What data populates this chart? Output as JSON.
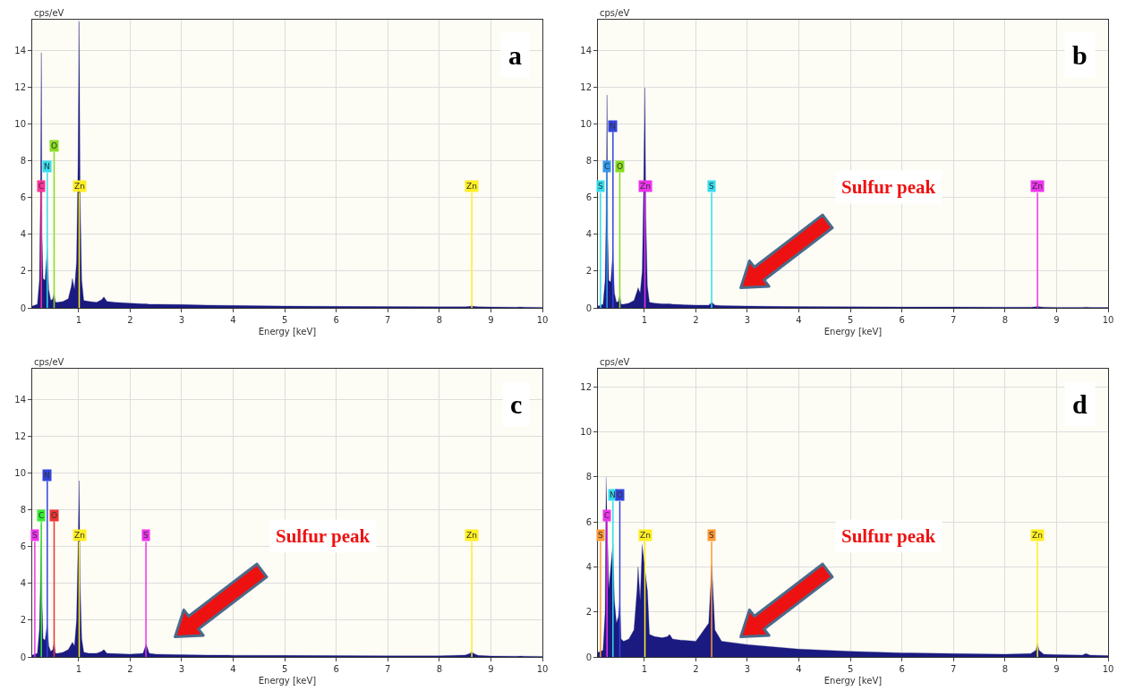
{
  "chart_data": [
    {
      "type": "area",
      "title": "a",
      "xlabel": "Energy [keV]",
      "ylabel": "cps/eV",
      "color": "#1a1a80",
      "grid": true,
      "xlim": [
        0.1,
        10
      ],
      "ylim": [
        0,
        15.7
      ],
      "xticks": [
        1,
        2,
        3,
        4,
        5,
        6,
        7,
        8,
        9,
        10
      ],
      "yticks": [
        0,
        2,
        4,
        6,
        8,
        10,
        12,
        14
      ],
      "x": [
        0.1,
        0.2,
        0.24,
        0.26,
        0.277,
        0.29,
        0.31,
        0.35,
        0.39,
        0.42,
        0.46,
        0.5,
        0.525,
        0.55,
        0.6,
        0.7,
        0.8,
        0.86,
        0.88,
        0.92,
        0.96,
        0.99,
        1.012,
        1.03,
        1.06,
        1.1,
        1.2,
        1.35,
        1.45,
        1.49,
        1.55,
        1.7,
        2,
        2.25,
        2.31,
        2.37,
        2.5,
        3,
        3.5,
        4,
        5,
        6,
        7,
        8,
        8.5,
        8.6,
        8.63,
        8.66,
        8.75,
        9,
        9.5,
        9.57,
        9.65,
        10
      ],
      "values": [
        0.1,
        0.2,
        1.5,
        6,
        13.9,
        4,
        1.6,
        1.5,
        3.2,
        1.0,
        0.4,
        0.5,
        0.8,
        0.3,
        0.3,
        0.35,
        0.5,
        1.2,
        1.6,
        1.0,
        2.5,
        8,
        15.6,
        6,
        1.5,
        0.4,
        0.35,
        0.3,
        0.45,
        0.6,
        0.35,
        0.3,
        0.25,
        0.22,
        0.22,
        0.2,
        0.2,
        0.18,
        0.15,
        0.13,
        0.1,
        0.08,
        0.07,
        0.06,
        0.06,
        0.08,
        0.12,
        0.08,
        0.06,
        0.05,
        0.04,
        0.05,
        0.04,
        0.03
      ],
      "ref_lines": [
        {
          "axis": "x",
          "value": 0.277,
          "label": "C",
          "color": "#ff3399"
        },
        {
          "axis": "x",
          "value": 0.392,
          "label": "N",
          "color": "#33ddee"
        },
        {
          "axis": "x",
          "value": 0.525,
          "label": "O",
          "color": "#88dd22"
        },
        {
          "axis": "x",
          "value": 1.012,
          "label": "Zn",
          "color": "#ffee22"
        },
        {
          "axis": "x",
          "value": 8.63,
          "label": "Zn",
          "color": "#ffee22"
        }
      ]
    },
    {
      "type": "area",
      "title": "b",
      "xlabel": "Energy [keV]",
      "ylabel": "cps/eV",
      "color": "#1a1a80",
      "grid": true,
      "xlim": [
        0.1,
        10
      ],
      "ylim": [
        0,
        15.7
      ],
      "xticks": [
        1,
        2,
        3,
        4,
        5,
        6,
        7,
        8,
        9,
        10
      ],
      "yticks": [
        0,
        2,
        4,
        6,
        8,
        10,
        12,
        14
      ],
      "x": [
        0.1,
        0.2,
        0.24,
        0.26,
        0.277,
        0.29,
        0.31,
        0.35,
        0.39,
        0.42,
        0.46,
        0.5,
        0.525,
        0.55,
        0.6,
        0.7,
        0.8,
        0.86,
        0.88,
        0.92,
        0.96,
        0.99,
        1.012,
        1.03,
        1.06,
        1.1,
        1.2,
        1.35,
        1.45,
        1.49,
        1.55,
        1.7,
        2,
        2.25,
        2.31,
        2.37,
        2.5,
        3,
        3.5,
        4,
        5,
        6,
        7,
        8,
        8.5,
        8.6,
        8.63,
        8.66,
        8.75,
        9,
        9.5,
        9.57,
        9.65,
        10
      ],
      "values": [
        0.1,
        0.2,
        1.5,
        5,
        11.6,
        4,
        1.5,
        1.4,
        3.0,
        0.8,
        0.3,
        0.35,
        0.7,
        0.2,
        0.2,
        0.25,
        0.4,
        0.9,
        1.1,
        0.8,
        2.0,
        7,
        12,
        5,
        1.2,
        0.3,
        0.25,
        0.22,
        0.22,
        0.22,
        0.2,
        0.18,
        0.15,
        0.15,
        0.3,
        0.15,
        0.12,
        0.1,
        0.08,
        0.07,
        0.06,
        0.05,
        0.05,
        0.04,
        0.04,
        0.06,
        0.1,
        0.06,
        0.04,
        0.03,
        0.03,
        0.04,
        0.03,
        0.02
      ],
      "ref_lines": [
        {
          "axis": "x",
          "value": 0.15,
          "label": "S",
          "color": "#33ddee"
        },
        {
          "axis": "x",
          "value": 0.277,
          "label": "C",
          "color": "#3399ee"
        },
        {
          "axis": "x",
          "value": 0.525,
          "label": "O",
          "color": "#88dd22"
        },
        {
          "axis": "x",
          "value": 0.392,
          "label": "N",
          "color": "#3344dd"
        },
        {
          "axis": "x",
          "value": 1.012,
          "label": "Zn",
          "color": "#ee33ee"
        },
        {
          "axis": "x",
          "value": 2.307,
          "label": "S",
          "color": "#33ddee"
        },
        {
          "axis": "x",
          "value": 8.63,
          "label": "Zn",
          "color": "#ee33ee"
        }
      ],
      "annotations": [
        "Sulfur peak"
      ]
    },
    {
      "type": "area",
      "title": "c",
      "xlabel": "Energy [keV]",
      "ylabel": "cps/eV",
      "color": "#1a1a80",
      "grid": true,
      "xlim": [
        0.1,
        10
      ],
      "ylim": [
        0,
        15.7
      ],
      "xticks": [
        1,
        2,
        3,
        4,
        5,
        6,
        7,
        8,
        9,
        10
      ],
      "yticks": [
        0,
        2,
        4,
        6,
        8,
        10,
        12,
        14
      ],
      "x": [
        0.1,
        0.2,
        0.24,
        0.26,
        0.277,
        0.29,
        0.31,
        0.35,
        0.39,
        0.42,
        0.46,
        0.5,
        0.525,
        0.55,
        0.6,
        0.7,
        0.8,
        0.86,
        0.88,
        0.92,
        0.96,
        0.99,
        1.012,
        1.03,
        1.06,
        1.1,
        1.2,
        1.35,
        1.45,
        1.49,
        1.55,
        1.7,
        2,
        2.25,
        2.31,
        2.37,
        2.5,
        3,
        3.5,
        4,
        5,
        6,
        7,
        8,
        8.5,
        8.6,
        8.63,
        8.66,
        8.75,
        9,
        9.5,
        9.57,
        9.65,
        10
      ],
      "values": [
        0.1,
        0.2,
        1.5,
        4,
        7.2,
        3,
        1.0,
        0.9,
        1.8,
        0.6,
        0.3,
        0.4,
        0.8,
        0.2,
        0.2,
        0.25,
        0.4,
        0.7,
        0.8,
        0.6,
        2.0,
        6,
        9.6,
        4,
        1.0,
        0.25,
        0.2,
        0.2,
        0.3,
        0.4,
        0.2,
        0.18,
        0.15,
        0.2,
        0.7,
        0.2,
        0.15,
        0.12,
        0.1,
        0.09,
        0.08,
        0.07,
        0.06,
        0.06,
        0.1,
        0.2,
        0.3,
        0.2,
        0.08,
        0.05,
        0.04,
        0.05,
        0.04,
        0.03
      ],
      "ref_lines": [
        {
          "axis": "x",
          "value": 0.15,
          "label": "S",
          "color": "#ee33ee"
        },
        {
          "axis": "x",
          "value": 0.277,
          "label": "C",
          "color": "#33ee33"
        },
        {
          "axis": "x",
          "value": 0.525,
          "label": "O",
          "color": "#ee3333"
        },
        {
          "axis": "x",
          "value": 0.392,
          "label": "N",
          "color": "#3344dd"
        },
        {
          "axis": "x",
          "value": 1.012,
          "label": "Zn",
          "color": "#ffee22"
        },
        {
          "axis": "x",
          "value": 2.307,
          "label": "S",
          "color": "#ee33ee"
        },
        {
          "axis": "x",
          "value": 8.63,
          "label": "Zn",
          "color": "#ffee22"
        }
      ],
      "annotations": [
        "Sulfur peak"
      ]
    },
    {
      "type": "area",
      "title": "d",
      "xlabel": "Energy [keV]",
      "ylabel": "cps/eV",
      "color": "#1a1a80",
      "grid": true,
      "xlim": [
        0.1,
        10
      ],
      "ylim": [
        0,
        12.8
      ],
      "xticks": [
        1,
        2,
        3,
        4,
        5,
        6,
        7,
        8,
        9,
        10
      ],
      "yticks": [
        0,
        2,
        4,
        6,
        8,
        10,
        12
      ],
      "x": [
        0.1,
        0.2,
        0.24,
        0.26,
        0.277,
        0.29,
        0.31,
        0.35,
        0.39,
        0.42,
        0.46,
        0.5,
        0.525,
        0.55,
        0.6,
        0.7,
        0.8,
        0.86,
        0.88,
        0.92,
        0.96,
        0.99,
        1.012,
        1.03,
        1.06,
        1.1,
        1.2,
        1.35,
        1.45,
        1.49,
        1.55,
        1.7,
        2,
        2.25,
        2.31,
        2.37,
        2.5,
        3,
        3.5,
        4,
        5,
        6,
        7,
        8,
        8.5,
        8.6,
        8.63,
        8.66,
        8.75,
        9,
        9.5,
        9.57,
        9.65,
        10
      ],
      "values": [
        0.2,
        0.3,
        2,
        8,
        null,
        5,
        3,
        4,
        5,
        2.5,
        1.5,
        1.8,
        2.5,
        0.8,
        0.7,
        0.8,
        1.2,
        3,
        4,
        2.5,
        5,
        null,
        null,
        null,
        3,
        1.0,
        0.9,
        0.85,
        0.9,
        1.0,
        0.8,
        0.75,
        0.7,
        1.5,
        4.1,
        1.2,
        0.7,
        0.55,
        0.45,
        0.35,
        0.25,
        0.18,
        0.15,
        0.12,
        0.15,
        0.3,
        0.6,
        0.3,
        0.12,
        0.1,
        0.08,
        0.15,
        0.08,
        0.06
      ],
      "ref_lines": [
        {
          "axis": "x",
          "value": 0.15,
          "label": "S",
          "color": "#ff9933"
        },
        {
          "axis": "x",
          "value": 0.277,
          "label": "C",
          "color": "#ee33ee"
        },
        {
          "axis": "x",
          "value": 0.392,
          "label": "N",
          "color": "#33ddee"
        },
        {
          "axis": "x",
          "value": 0.525,
          "label": "O",
          "color": "#3344dd"
        },
        {
          "axis": "x",
          "value": 1.012,
          "label": "Zn",
          "color": "#ffee22"
        },
        {
          "axis": "x",
          "value": 2.307,
          "label": "S",
          "color": "#ff9933"
        },
        {
          "axis": "x",
          "value": 8.63,
          "label": "Zn",
          "color": "#ffee22"
        }
      ],
      "annotations": [
        "Sulfur peak"
      ]
    }
  ]
}
